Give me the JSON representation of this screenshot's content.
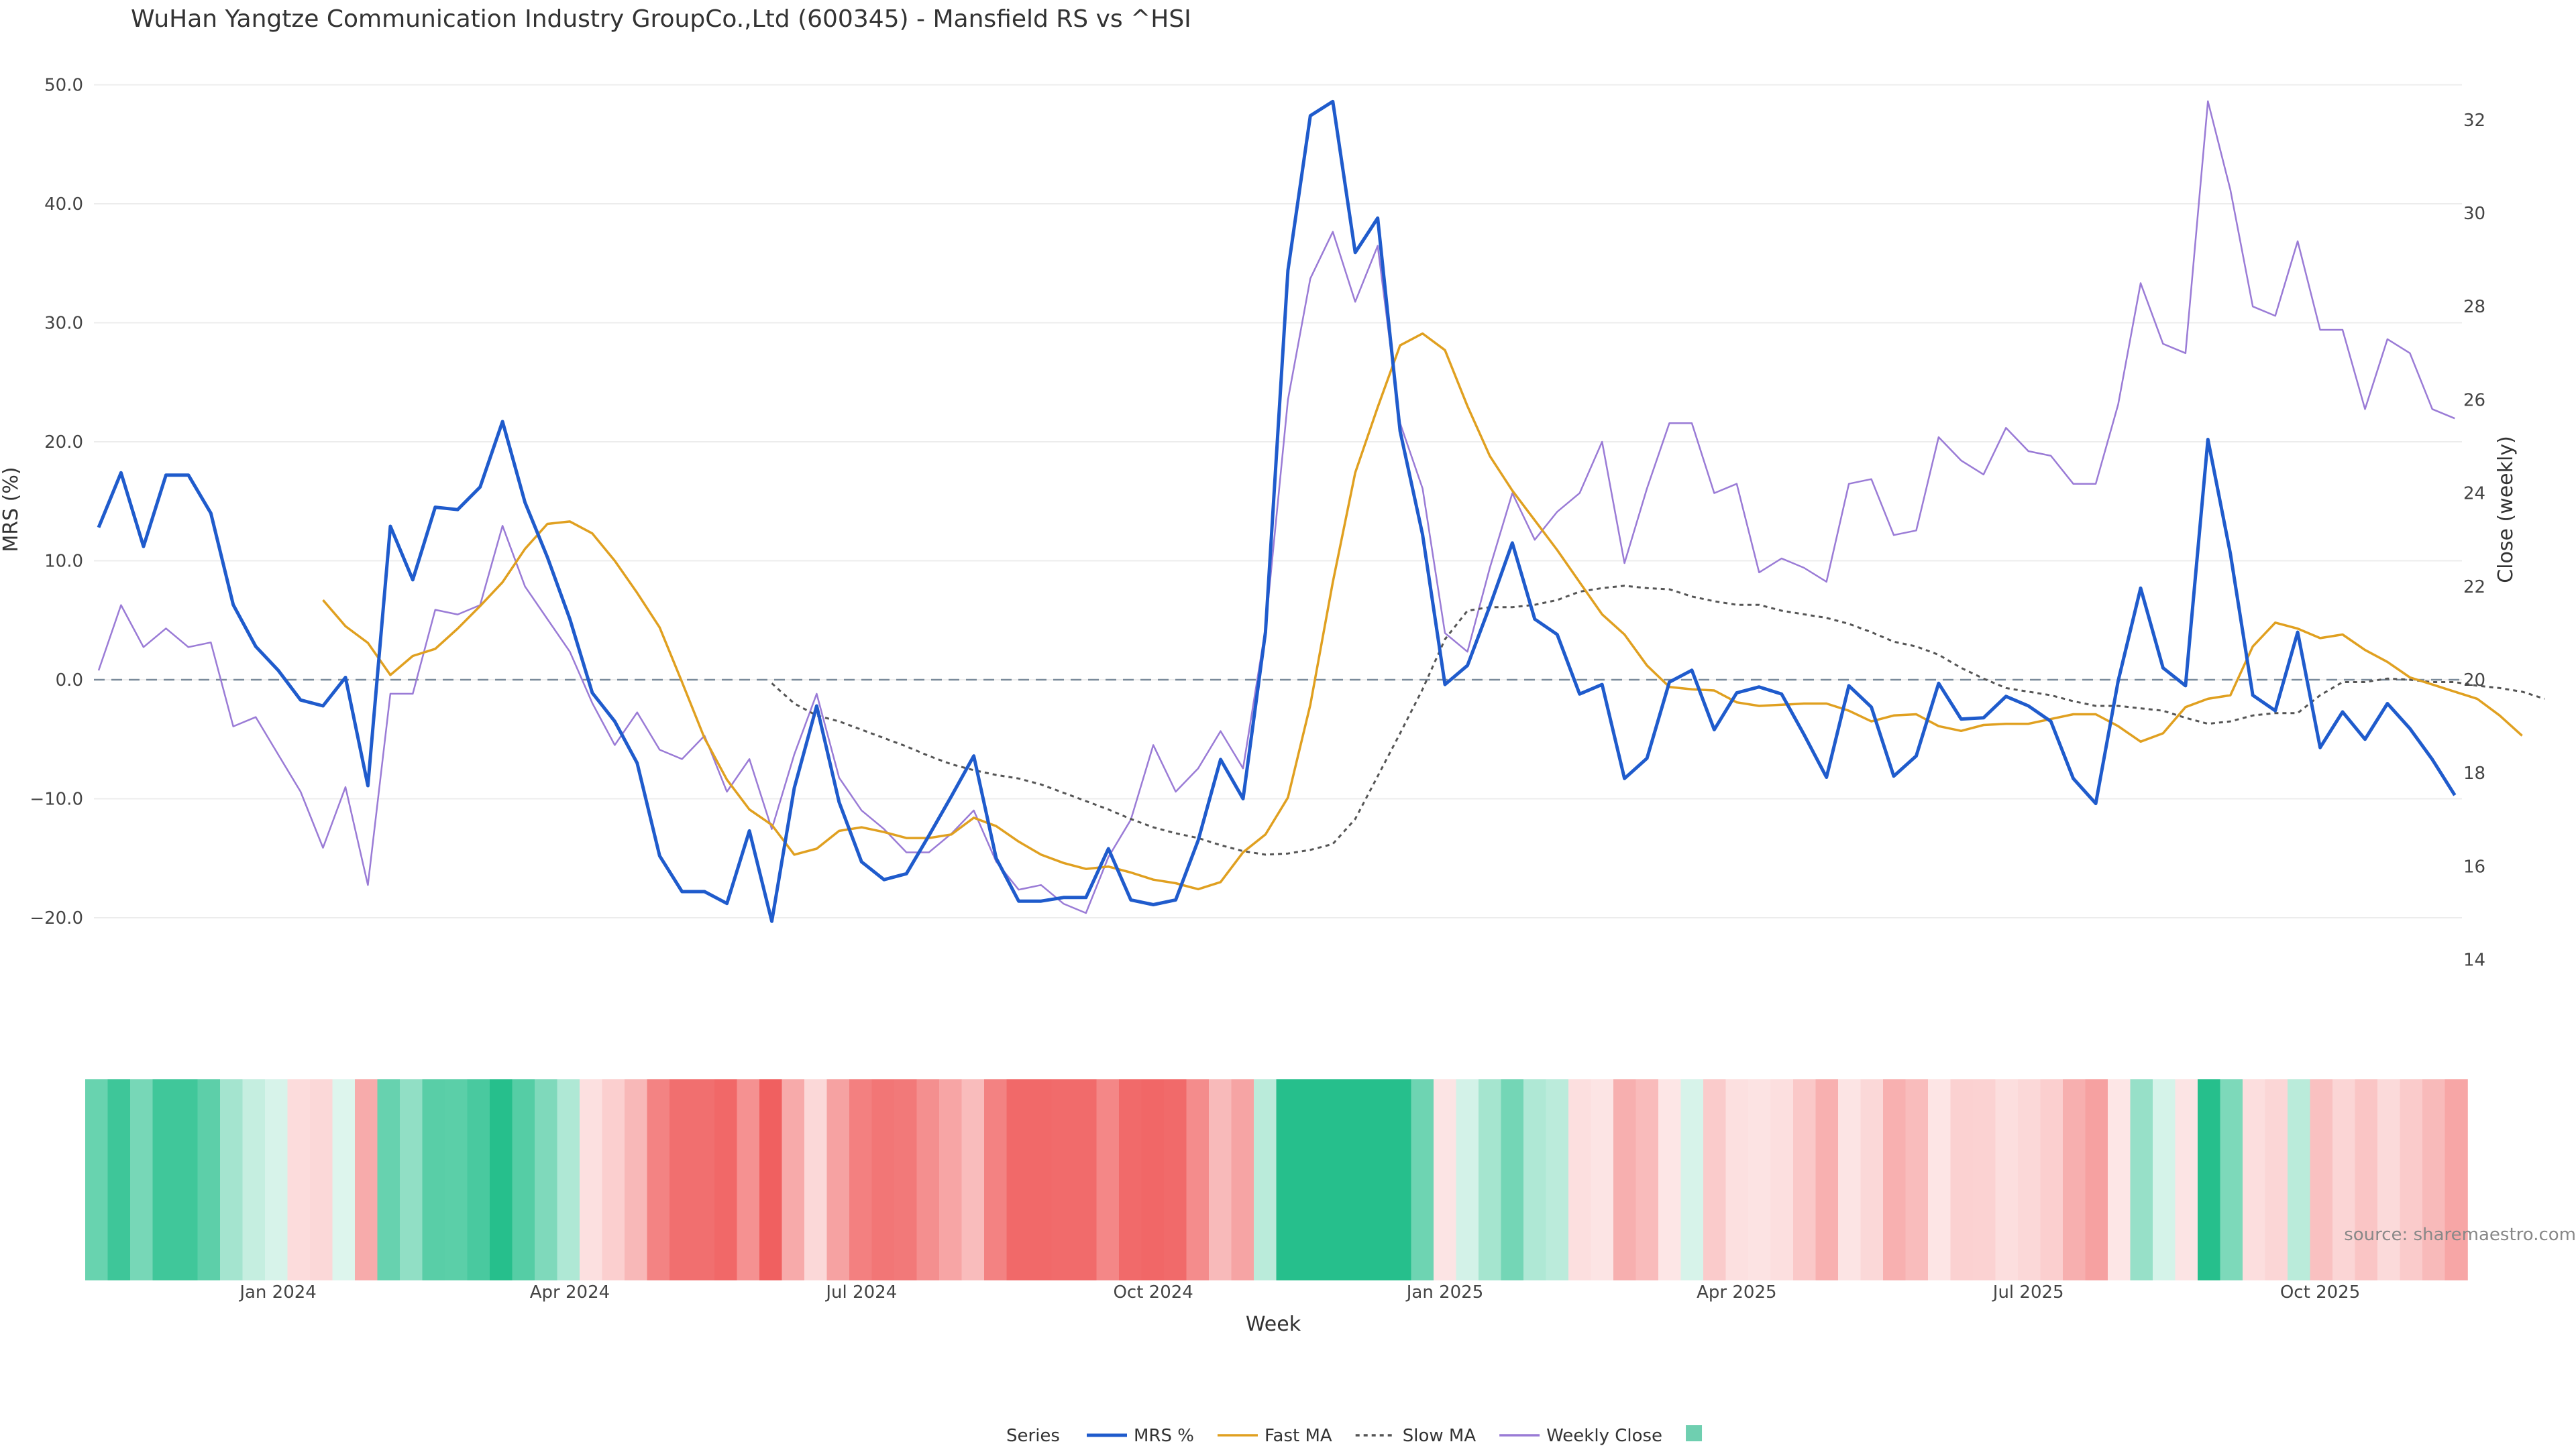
{
  "chart_data": {
    "type": "line",
    "title": "WuHan Yangtze Communication Industry GroupCo.,Ltd (600345) - Mansfield RS vs ^HSI",
    "xlabel": "Week",
    "ylabel_left": "MRS (%)",
    "ylabel_right": "Close (weekly)",
    "ylim_left": [
      -24,
      50
    ],
    "ylim_right": [
      13.2,
      32.8
    ],
    "yticks_left": [
      "50.0",
      "40.0",
      "30.0",
      "20.0",
      "10.0",
      "0.0",
      "−10.0",
      "−20.0"
    ],
    "ytick_values_left": [
      50,
      40,
      30,
      20,
      10,
      0,
      -10,
      -20
    ],
    "yticks_right": [
      "32",
      "30",
      "28",
      "26",
      "24",
      "22",
      "20",
      "18",
      "16",
      "14"
    ],
    "ytick_values_right": [
      32,
      30,
      28,
      26,
      24,
      22,
      20,
      18,
      16,
      14
    ],
    "xticks": [
      "Jan 2024",
      "Apr 2024",
      "Jul 2024",
      "Oct 2024",
      "Jan 2025",
      "Apr 2025",
      "Jul 2025",
      "Oct 2025"
    ],
    "xtick_weeks": [
      8,
      21,
      34,
      47,
      60,
      73,
      86,
      99
    ],
    "weeks": 107,
    "zero_line": 0,
    "series": [
      {
        "name": "MRS %",
        "color": "#1f5bcc",
        "axis": "left",
        "start_week": 0,
        "values": [
          12.8,
          17.4,
          11.2,
          17.2,
          17.2,
          14.0,
          6.3,
          2.8,
          0.8,
          -1.7,
          -2.2,
          0.2,
          -8.9,
          12.9,
          8.4,
          14.5,
          14.3,
          16.2,
          21.7,
          14.9,
          10.3,
          5.1,
          -1.1,
          -3.5,
          -7.0,
          -14.8,
          -17.8,
          -17.8,
          -18.8,
          -12.7,
          -20.3,
          -9.1,
          -2.2,
          -10.3,
          -15.3,
          -16.8,
          -16.3,
          -13.1,
          -9.8,
          -6.4,
          -15.0,
          -18.6,
          -18.6,
          -18.3,
          -18.3,
          -14.2,
          -18.5,
          -18.9,
          -18.5,
          -13.5,
          -6.7,
          -10.0,
          4.0,
          34.4,
          47.4,
          48.6,
          35.9,
          38.8,
          20.9,
          12.2,
          -0.4,
          1.2,
          6.2,
          11.5,
          5.1,
          3.8,
          -1.2,
          -0.4,
          -8.3,
          -6.6,
          -0.2,
          0.8,
          -4.2,
          -1.1,
          -0.6,
          -1.2,
          -4.6,
          -8.2,
          -0.5,
          -2.3,
          -8.1,
          -6.4,
          -0.3,
          -3.3,
          -3.2,
          -1.4,
          -2.2,
          -3.5,
          -8.3,
          -10.4,
          -0.1,
          7.7,
          1.0,
          -0.5,
          20.2,
          10.6,
          -1.3,
          -2.6,
          4.0,
          -5.7,
          -2.7,
          -5.0,
          -2.0,
          -4.1,
          -6.7,
          -9.7
        ]
      },
      {
        "name": "Fast MA",
        "color": "#e0a020",
        "axis": "left",
        "start_week": 10,
        "values": [
          6.7,
          4.5,
          3.1,
          0.4,
          2.0,
          2.6,
          4.3,
          6.2,
          8.2,
          11.0,
          13.1,
          13.3,
          12.3,
          10.0,
          7.3,
          4.4,
          -0.2,
          -4.9,
          -8.4,
          -10.9,
          -12.2,
          -14.7,
          -14.2,
          -12.7,
          -12.4,
          -12.8,
          -13.3,
          -13.3,
          -13.0,
          -11.6,
          -12.3,
          -13.6,
          -14.7,
          -15.4,
          -15.9,
          -15.7,
          -16.2,
          -16.8,
          -17.1,
          -17.6,
          -17.0,
          -14.5,
          -13.0,
          -9.9,
          -2.1,
          8.2,
          17.4,
          22.9,
          28.1,
          29.1,
          27.7,
          23.0,
          18.8,
          15.9,
          13.4,
          10.9,
          8.2,
          5.5,
          3.8,
          1.2,
          -0.6,
          -0.8,
          -0.9,
          -1.9,
          -2.2,
          -2.1,
          -2.0,
          -2.0,
          -2.6,
          -3.5,
          -3.0,
          -2.9,
          -3.9,
          -4.3,
          -3.8,
          -3.7,
          -3.7,
          -3.3,
          -2.9,
          -2.9,
          -3.9,
          -5.2,
          -4.5,
          -2.3,
          -1.6,
          -1.3,
          2.8,
          4.8,
          4.3,
          3.5,
          3.8,
          2.5,
          1.5,
          0.2,
          -0.4,
          -1.0,
          -1.6,
          -3.0,
          -4.7
        ]
      },
      {
        "name": "Slow MA",
        "color": "#555555",
        "axis": "left",
        "dashed": true,
        "start_week": 30,
        "values": [
          -0.3,
          -2.0,
          -3.0,
          -3.5,
          -4.2,
          -4.9,
          -5.6,
          -6.4,
          -7.1,
          -7.6,
          -8.0,
          -8.3,
          -8.8,
          -9.5,
          -10.2,
          -10.9,
          -11.7,
          -12.4,
          -12.9,
          -13.3,
          -13.9,
          -14.4,
          -14.7,
          -14.6,
          -14.3,
          -13.8,
          -11.7,
          -8.1,
          -4.5,
          -0.8,
          3.4,
          5.8,
          6.1,
          6.1,
          6.3,
          6.7,
          7.4,
          7.7,
          7.9,
          7.7,
          7.6,
          7.0,
          6.6,
          6.3,
          6.3,
          5.8,
          5.5,
          5.2,
          4.7,
          4.0,
          3.2,
          2.8,
          2.1,
          1.0,
          0.1,
          -0.7,
          -1.0,
          -1.3,
          -1.8,
          -2.2,
          -2.2,
          -2.4,
          -2.6,
          -3.2,
          -3.7,
          -3.5,
          -3.0,
          -2.8,
          -2.8,
          -1.3,
          -0.2,
          -0.2,
          0.1,
          0.0,
          -0.2,
          -0.2,
          -0.5,
          -0.7,
          -1.0,
          -1.6
        ]
      },
      {
        "name": "Weekly Close",
        "color": "#9a7bd6",
        "axis": "right",
        "start_week": 0,
        "values": [
          20.2,
          21.6,
          20.7,
          21.1,
          20.7,
          20.8,
          19.0,
          19.2,
          18.4,
          17.6,
          16.4,
          17.7,
          15.6,
          19.7,
          19.7,
          21.5,
          21.4,
          21.6,
          23.3,
          22.0,
          21.3,
          20.6,
          19.5,
          18.6,
          19.3,
          18.5,
          18.3,
          18.8,
          17.6,
          18.3,
          16.8,
          18.4,
          19.7,
          17.9,
          17.2,
          16.8,
          16.3,
          16.3,
          16.7,
          17.2,
          16.1,
          15.5,
          15.6,
          15.2,
          15.0,
          16.2,
          17.0,
          18.6,
          17.6,
          18.1,
          18.9,
          18.1,
          21.1,
          26.0,
          28.6,
          29.6,
          28.1,
          29.3,
          25.5,
          24.1,
          21.0,
          20.6,
          22.4,
          24.0,
          23.0,
          23.6,
          24.0,
          25.1,
          22.5,
          24.1,
          25.5,
          25.5,
          24.0,
          24.2,
          22.3,
          22.6,
          22.4,
          22.1,
          24.2,
          24.3,
          23.1,
          23.2,
          25.2,
          24.7,
          24.4,
          25.4,
          24.9,
          24.8,
          24.2,
          24.2,
          25.9,
          28.5,
          27.2,
          27.0,
          32.4,
          30.5,
          28.0,
          27.8,
          29.4,
          27.5,
          27.5,
          25.8,
          27.3,
          27.0,
          25.8,
          25.6
        ]
      }
    ],
    "heatmap_mrs_colors": {
      "strong_positive": "#26bf8c",
      "strong_negative": "#f06060",
      "neutral": "#ffffff"
    },
    "legend": {
      "title": "Series",
      "entries": [
        "MRS %",
        "Fast MA",
        "Slow MA",
        "Weekly Close",
        ""
      ],
      "swatch_color": "#6fcfb0",
      "placement": "bottom-center"
    },
    "grid": true,
    "source_text": "source: sharemaestro.com"
  }
}
